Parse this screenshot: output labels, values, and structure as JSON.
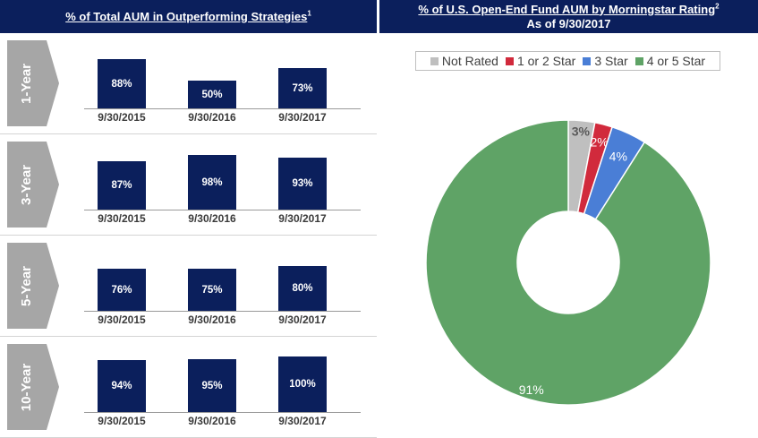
{
  "headers": {
    "left_title": "% of Total AUM in Outperforming Strategies",
    "left_footnote": "1",
    "right_title": "% of U.S. Open-End Fund AUM by Morningstar Rating",
    "right_footnote": "2",
    "right_subtitle": "As of 9/30/2017"
  },
  "chart_data": [
    {
      "type": "bar",
      "title": "% of Total AUM in Outperforming Strategies - 1-Year",
      "period_label": "1-Year",
      "categories": [
        "9/30/2015",
        "9/30/2016",
        "9/30/2017"
      ],
      "values": [
        88,
        50,
        73
      ],
      "value_labels": [
        "88%",
        "50%",
        "73%"
      ],
      "ylim": [
        0,
        100
      ]
    },
    {
      "type": "bar",
      "title": "% of Total AUM in Outperforming Strategies - 3-Year",
      "period_label": "3-Year",
      "categories": [
        "9/30/2015",
        "9/30/2016",
        "9/30/2017"
      ],
      "values": [
        87,
        98,
        93
      ],
      "value_labels": [
        "87%",
        "98%",
        "93%"
      ],
      "ylim": [
        0,
        100
      ]
    },
    {
      "type": "bar",
      "title": "% of Total AUM in Outperforming Strategies - 5-Year",
      "period_label": "5-Year",
      "categories": [
        "9/30/2015",
        "9/30/2016",
        "9/30/2017"
      ],
      "values": [
        76,
        75,
        80
      ],
      "value_labels": [
        "76%",
        "75%",
        "80%"
      ],
      "ylim": [
        0,
        100
      ]
    },
    {
      "type": "bar",
      "title": "% of Total AUM in Outperforming Strategies - 10-Year",
      "period_label": "10-Year",
      "categories": [
        "9/30/2015",
        "9/30/2016",
        "9/30/2017"
      ],
      "values": [
        94,
        95,
        100
      ],
      "value_labels": [
        "94%",
        "95%",
        "100%"
      ],
      "ylim": [
        0,
        100
      ]
    },
    {
      "type": "pie",
      "style": "donut",
      "title": "% of U.S. Open-End Fund AUM by Morningstar Rating",
      "subtitle": "As of 9/30/2017",
      "legend_position": "top",
      "slices": [
        {
          "name": "Not Rated",
          "value": 3,
          "label": "3%",
          "color": "#bfbfbf",
          "label_color": "#595959"
        },
        {
          "name": "1 or 2 Star",
          "value": 2,
          "label": "2%",
          "color": "#d12a3c",
          "label_color": "#ffffff"
        },
        {
          "name": "3 Star",
          "value": 4,
          "label": "4%",
          "color": "#4a7ed6",
          "label_color": "#ffffff"
        },
        {
          "name": "4 or 5 Star",
          "value": 91,
          "label": "91%",
          "color": "#5fa366",
          "label_color": "#ffffff"
        }
      ]
    }
  ],
  "colors": {
    "bar": "#0b1f5c",
    "header_bg": "#0b1f5c",
    "chevron": "#a6a6a6"
  }
}
